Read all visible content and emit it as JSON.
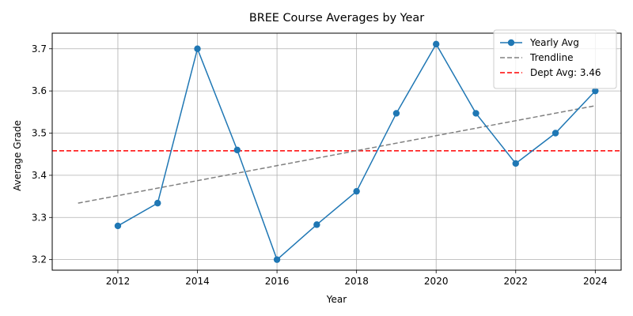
{
  "chart_data": {
    "type": "line",
    "title": "BREE Course Averages by Year",
    "xlabel": "Year",
    "ylabel": "Average Grade",
    "xlim": [
      2010.35,
      2024.65
    ],
    "ylim": [
      3.175,
      3.737
    ],
    "x_ticks": [
      2012,
      2014,
      2016,
      2018,
      2020,
      2022,
      2024
    ],
    "y_ticks": [
      3.2,
      3.3,
      3.4,
      3.5,
      3.6,
      3.7
    ],
    "grid": true,
    "legend_position": "top-right",
    "series": [
      {
        "name": "Yearly Avg",
        "style": "solid-line-with-markers",
        "color": "#1f77b4",
        "x": [
          2012,
          2013,
          2014,
          2015,
          2016,
          2017,
          2018,
          2019,
          2020,
          2021,
          2022,
          2023,
          2024
        ],
        "y": [
          3.28,
          3.334,
          3.7,
          3.46,
          3.2,
          3.283,
          3.362,
          3.547,
          3.711,
          3.547,
          3.428,
          3.5,
          3.6
        ]
      },
      {
        "name": "Trendline",
        "style": "dashed",
        "color": "#808080",
        "x": [
          2011,
          2024
        ],
        "y": [
          3.334,
          3.565
        ]
      },
      {
        "name": "Dept Avg: 3.46",
        "style": "dashed-horizontal",
        "color": "#ff0000",
        "y_value": 3.458
      }
    ]
  }
}
